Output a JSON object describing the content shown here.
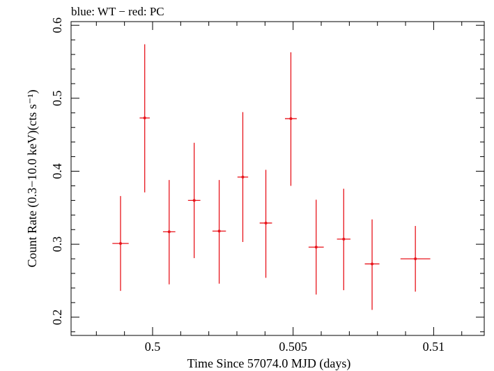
{
  "chart_data": {
    "type": "scatter",
    "title": "blue: WT − red: PC",
    "xlabel": "Time Since 57074.0 MJD (days)",
    "ylabel": "Count Rate (0.3−10.0 keV)(cts s⁻¹)",
    "xlim": [
      0.4971,
      0.5118
    ],
    "ylim": [
      0.175,
      0.605
    ],
    "x_ticks": [
      0.5,
      0.505,
      0.51
    ],
    "x_tick_labels": [
      "0.5",
      "0.505",
      "0.51"
    ],
    "y_ticks": [
      0.2,
      0.3,
      0.4,
      0.5,
      0.6
    ],
    "y_tick_labels": [
      "0.2",
      "0.3",
      "0.4",
      "0.5",
      "0.6"
    ],
    "grid": false,
    "series": [
      {
        "color": "#e8141b",
        "points": [
          {
            "x": 0.49886,
            "xerr": 0.00029,
            "y": 0.301,
            "ylo": 0.236,
            "yhi": 0.366
          },
          {
            "x": 0.49972,
            "xerr": 0.00018,
            "y": 0.473,
            "ylo": 0.371,
            "yhi": 0.574
          },
          {
            "x": 0.50059,
            "xerr": 0.00022,
            "y": 0.317,
            "ylo": 0.245,
            "yhi": 0.388
          },
          {
            "x": 0.50148,
            "xerr": 0.00022,
            "y": 0.36,
            "ylo": 0.281,
            "yhi": 0.439
          },
          {
            "x": 0.50237,
            "xerr": 0.00024,
            "y": 0.318,
            "ylo": 0.246,
            "yhi": 0.388
          },
          {
            "x": 0.50321,
            "xerr": 0.00019,
            "y": 0.392,
            "ylo": 0.303,
            "yhi": 0.481
          },
          {
            "x": 0.50403,
            "xerr": 0.00022,
            "y": 0.329,
            "ylo": 0.254,
            "yhi": 0.402
          },
          {
            "x": 0.50492,
            "xerr": 0.00021,
            "y": 0.472,
            "ylo": 0.38,
            "yhi": 0.563
          },
          {
            "x": 0.50582,
            "xerr": 0.00027,
            "y": 0.296,
            "ylo": 0.231,
            "yhi": 0.361
          },
          {
            "x": 0.5068,
            "xerr": 0.00024,
            "y": 0.307,
            "ylo": 0.237,
            "yhi": 0.376
          },
          {
            "x": 0.50781,
            "xerr": 0.00026,
            "y": 0.273,
            "ylo": 0.21,
            "yhi": 0.334
          },
          {
            "x": 0.50935,
            "xerr": 0.00053,
            "y": 0.28,
            "ylo": 0.235,
            "yhi": 0.325
          }
        ]
      }
    ]
  }
}
